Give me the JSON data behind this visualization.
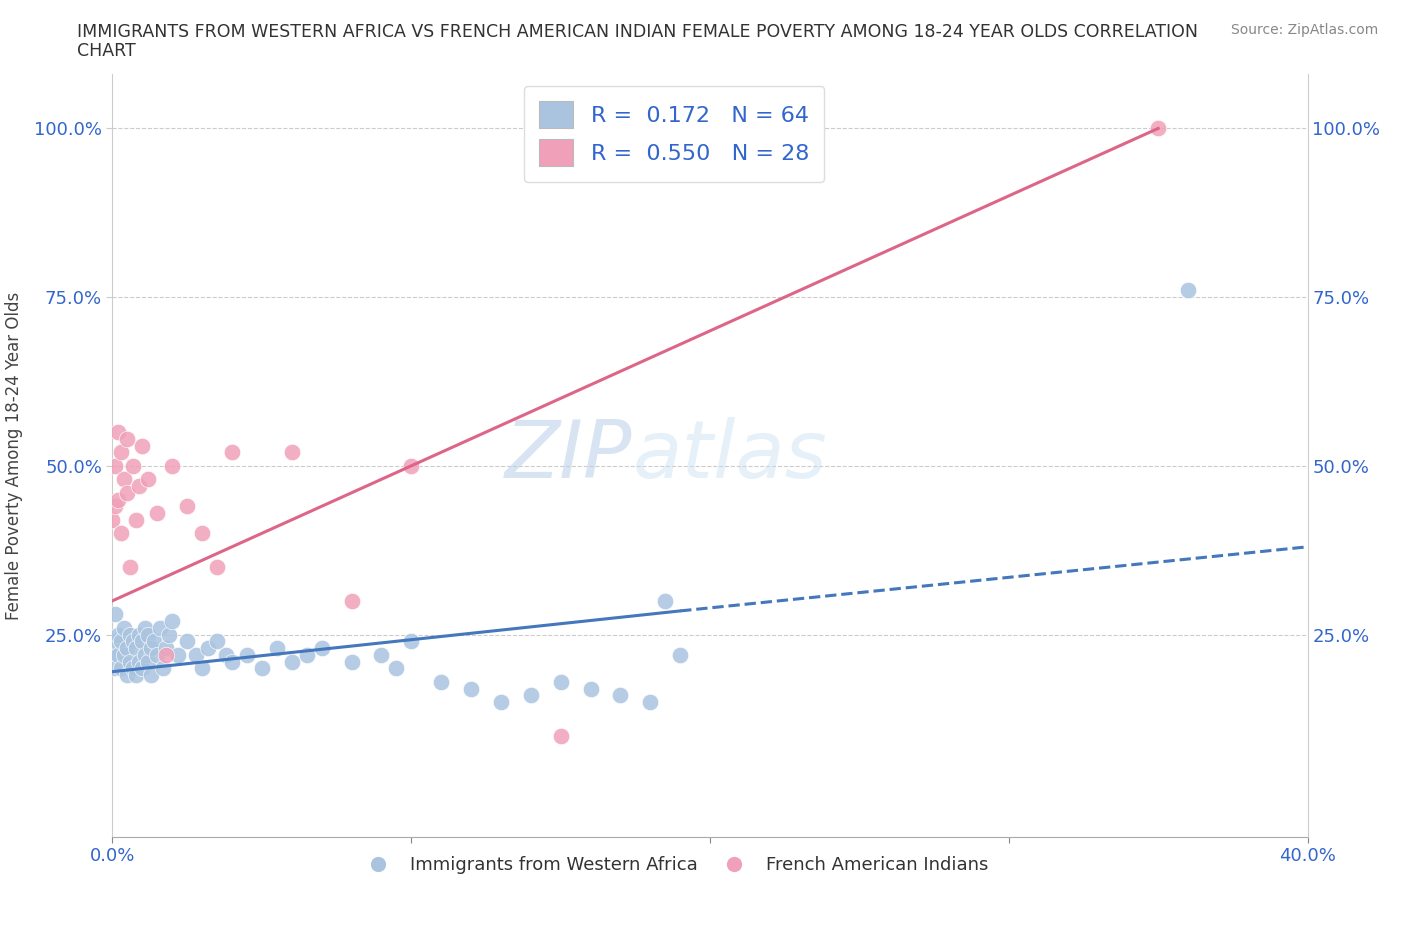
{
  "title_line1": "IMMIGRANTS FROM WESTERN AFRICA VS FRENCH AMERICAN INDIAN FEMALE POVERTY AMONG 18-24 YEAR OLDS CORRELATION",
  "title_line2": "CHART",
  "source": "Source: ZipAtlas.com",
  "ylabel": "Female Poverty Among 18-24 Year Olds",
  "xlim": [
    0.0,
    0.4
  ],
  "ylim": [
    -0.05,
    1.08
  ],
  "blue_color": "#aac4e0",
  "pink_color": "#f0a0b8",
  "blue_line_color": "#4477bb",
  "pink_line_color": "#dd6688",
  "R_blue": 0.172,
  "N_blue": 64,
  "R_pink": 0.55,
  "N_pink": 28,
  "legend_label_blue": "Immigrants from Western Africa",
  "legend_label_pink": "French American Indians",
  "watermark_ZIP": "ZIP",
  "watermark_atlas": "atlas",
  "blue_line_x0": 0.0,
  "blue_line_y0": 0.195,
  "blue_line_x1": 0.19,
  "blue_line_y1": 0.285,
  "blue_line_x1_dash": 0.19,
  "blue_line_x2_dash": 0.4,
  "blue_line_y2_dash": 0.38,
  "pink_line_x0": 0.0,
  "pink_line_y0": 0.3,
  "pink_line_x1": 0.35,
  "pink_line_y1": 1.0,
  "blue_scatter_x": [
    0.0,
    0.001,
    0.001,
    0.001,
    0.002,
    0.002,
    0.003,
    0.003,
    0.004,
    0.004,
    0.005,
    0.005,
    0.006,
    0.006,
    0.007,
    0.007,
    0.008,
    0.008,
    0.009,
    0.009,
    0.01,
    0.01,
    0.011,
    0.011,
    0.012,
    0.012,
    0.013,
    0.013,
    0.014,
    0.015,
    0.016,
    0.017,
    0.018,
    0.019,
    0.02,
    0.022,
    0.025,
    0.028,
    0.03,
    0.032,
    0.035,
    0.038,
    0.04,
    0.045,
    0.05,
    0.055,
    0.06,
    0.065,
    0.07,
    0.08,
    0.09,
    0.095,
    0.1,
    0.11,
    0.12,
    0.13,
    0.14,
    0.15,
    0.16,
    0.17,
    0.18,
    0.19,
    0.185,
    0.36
  ],
  "blue_scatter_y": [
    0.22,
    0.28,
    0.24,
    0.2,
    0.25,
    0.22,
    0.24,
    0.2,
    0.26,
    0.22,
    0.23,
    0.19,
    0.25,
    0.21,
    0.24,
    0.2,
    0.23,
    0.19,
    0.25,
    0.21,
    0.24,
    0.2,
    0.26,
    0.22,
    0.25,
    0.21,
    0.23,
    0.19,
    0.24,
    0.22,
    0.26,
    0.2,
    0.23,
    0.25,
    0.27,
    0.22,
    0.24,
    0.22,
    0.2,
    0.23,
    0.24,
    0.22,
    0.21,
    0.22,
    0.2,
    0.23,
    0.21,
    0.22,
    0.23,
    0.21,
    0.22,
    0.2,
    0.24,
    0.18,
    0.17,
    0.15,
    0.16,
    0.18,
    0.17,
    0.16,
    0.15,
    0.22,
    0.3,
    0.76
  ],
  "pink_scatter_x": [
    0.0,
    0.001,
    0.001,
    0.002,
    0.002,
    0.003,
    0.003,
    0.004,
    0.005,
    0.005,
    0.006,
    0.007,
    0.008,
    0.009,
    0.01,
    0.012,
    0.015,
    0.018,
    0.02,
    0.025,
    0.03,
    0.035,
    0.04,
    0.06,
    0.08,
    0.1,
    0.15,
    0.35
  ],
  "pink_scatter_y": [
    0.42,
    0.5,
    0.44,
    0.55,
    0.45,
    0.52,
    0.4,
    0.48,
    0.46,
    0.54,
    0.35,
    0.5,
    0.42,
    0.47,
    0.53,
    0.48,
    0.43,
    0.22,
    0.5,
    0.44,
    0.4,
    0.35,
    0.52,
    0.52,
    0.3,
    0.5,
    0.1,
    1.0
  ]
}
